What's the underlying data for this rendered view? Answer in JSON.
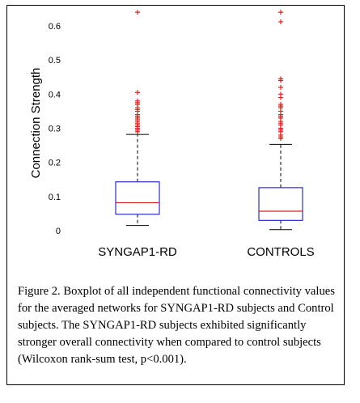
{
  "chart_data": {
    "type": "boxplot",
    "ylabel": "Connection Strength",
    "ylim": [
      -0.02,
      0.64
    ],
    "yticks": [
      "0",
      "0.1",
      "0.2",
      "0.3",
      "0.4",
      "0.5",
      "0.6"
    ],
    "categories": [
      "SYNGAP1-RD",
      "CONTROLS"
    ],
    "boxes": [
      {
        "name": "SYNGAP1-RD",
        "whisker_low": 0.015,
        "q1": 0.048,
        "median": 0.082,
        "q3": 0.143,
        "whisker_high": 0.282,
        "outliers": [
          0.29,
          0.295,
          0.3,
          0.305,
          0.31,
          0.315,
          0.32,
          0.325,
          0.33,
          0.335,
          0.34,
          0.35,
          0.355,
          0.36,
          0.37,
          0.375,
          0.38,
          0.405,
          0.64
        ]
      },
      {
        "name": "CONTROLS",
        "whisker_low": 0.003,
        "q1": 0.03,
        "median": 0.057,
        "q3": 0.126,
        "whisker_high": 0.253,
        "outliers": [
          0.27,
          0.275,
          0.28,
          0.29,
          0.295,
          0.3,
          0.31,
          0.315,
          0.32,
          0.33,
          0.335,
          0.34,
          0.35,
          0.36,
          0.365,
          0.37,
          0.39,
          0.4,
          0.42,
          0.44,
          0.445,
          0.612,
          0.64
        ]
      }
    ],
    "colors": {
      "box": "#2b2bd6",
      "median": "#e0201a",
      "whisker": "#000000",
      "outlier": "#e0201a"
    }
  },
  "caption": "Figure 2.  Boxplot of all independent functional connectivity values for the averaged networks for SYNGAP1-RD subjects and Control subjects. The SYNGAP1-RD subjects exhibited significantly stronger overall connectivity when compared to control subjects (Wilcoxon rank-sum test, p<0.001)."
}
